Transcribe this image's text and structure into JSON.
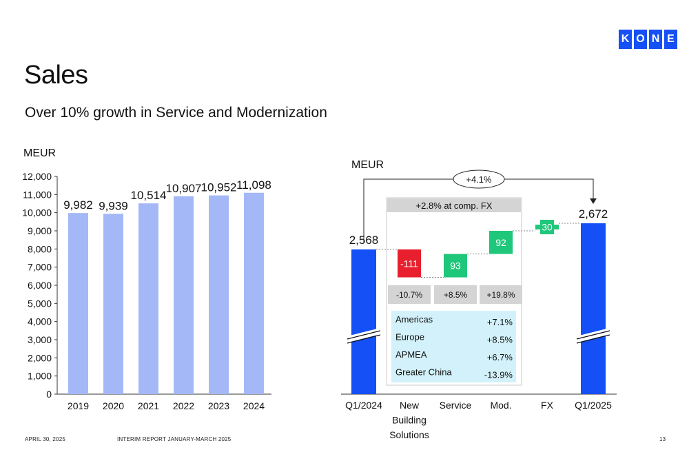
{
  "header": {
    "logo_letters": [
      "K",
      "O",
      "N",
      "E"
    ],
    "title": "Sales",
    "subtitle": "Over 10% growth in Service and Modernization"
  },
  "footer": {
    "date": "APRIL 30, 2025",
    "report": "INTERIM REPORT JANUARY-MARCH 2025",
    "page": "13"
  },
  "colors": {
    "bar_light": "#a4b8f8",
    "bar_dark": "#1450f5",
    "negative": "#e8202e",
    "positive": "#1ec77a",
    "box_grey": "#d4d4d4",
    "box_blue": "#d3f1fb",
    "logo": "#1450f5"
  },
  "chart_data": [
    {
      "type": "bar",
      "ylabel": "MEUR",
      "categories": [
        "2019",
        "2020",
        "2021",
        "2022",
        "2023",
        "2024"
      ],
      "values": [
        9982,
        9939,
        10514,
        10907,
        10952,
        11098
      ],
      "value_labels": [
        "9,982",
        "9,939",
        "10,514",
        "10,907",
        "10,952",
        "11,098"
      ],
      "ylim": [
        0,
        12000
      ],
      "yticks": [
        "0",
        "1,000",
        "2,000",
        "3,000",
        "4,000",
        "5,000",
        "6,000",
        "7,000",
        "8,000",
        "9,000",
        "10,000",
        "11,000",
        "12,000"
      ],
      "grid": false
    },
    {
      "type": "bar",
      "subtype": "waterfall",
      "ylabel": "MEUR",
      "categories": [
        "Q1/2024",
        "New Building Solutions",
        "Service",
        "Mod.",
        "FX",
        "Q1/2025"
      ],
      "category_lines": [
        [
          "Q1/2024"
        ],
        [
          "New",
          "Building",
          "Solutions"
        ],
        [
          "Service"
        ],
        [
          "Mod."
        ],
        [
          "FX"
        ],
        [
          "Q1/2025"
        ]
      ],
      "start": 2568,
      "changes": [
        -111,
        93,
        92,
        30
      ],
      "end": 2672,
      "value_labels": [
        "2,568",
        "-111",
        "93",
        "92",
        "30",
        "2,672"
      ],
      "axis_break": true,
      "total_change": "+4.1%",
      "comparable_fx_label": "+2.8% at comp. FX",
      "segment_growth": [
        "-10.7%",
        "+8.5%",
        "+19.8%"
      ],
      "regions": [
        {
          "name": "Americas",
          "value": "+7.1%"
        },
        {
          "name": "Europe",
          "value": "+8.5%"
        },
        {
          "name": "APMEA",
          "value": "+6.7%"
        },
        {
          "name": "Greater China",
          "value": "-13.9%"
        }
      ]
    }
  ]
}
